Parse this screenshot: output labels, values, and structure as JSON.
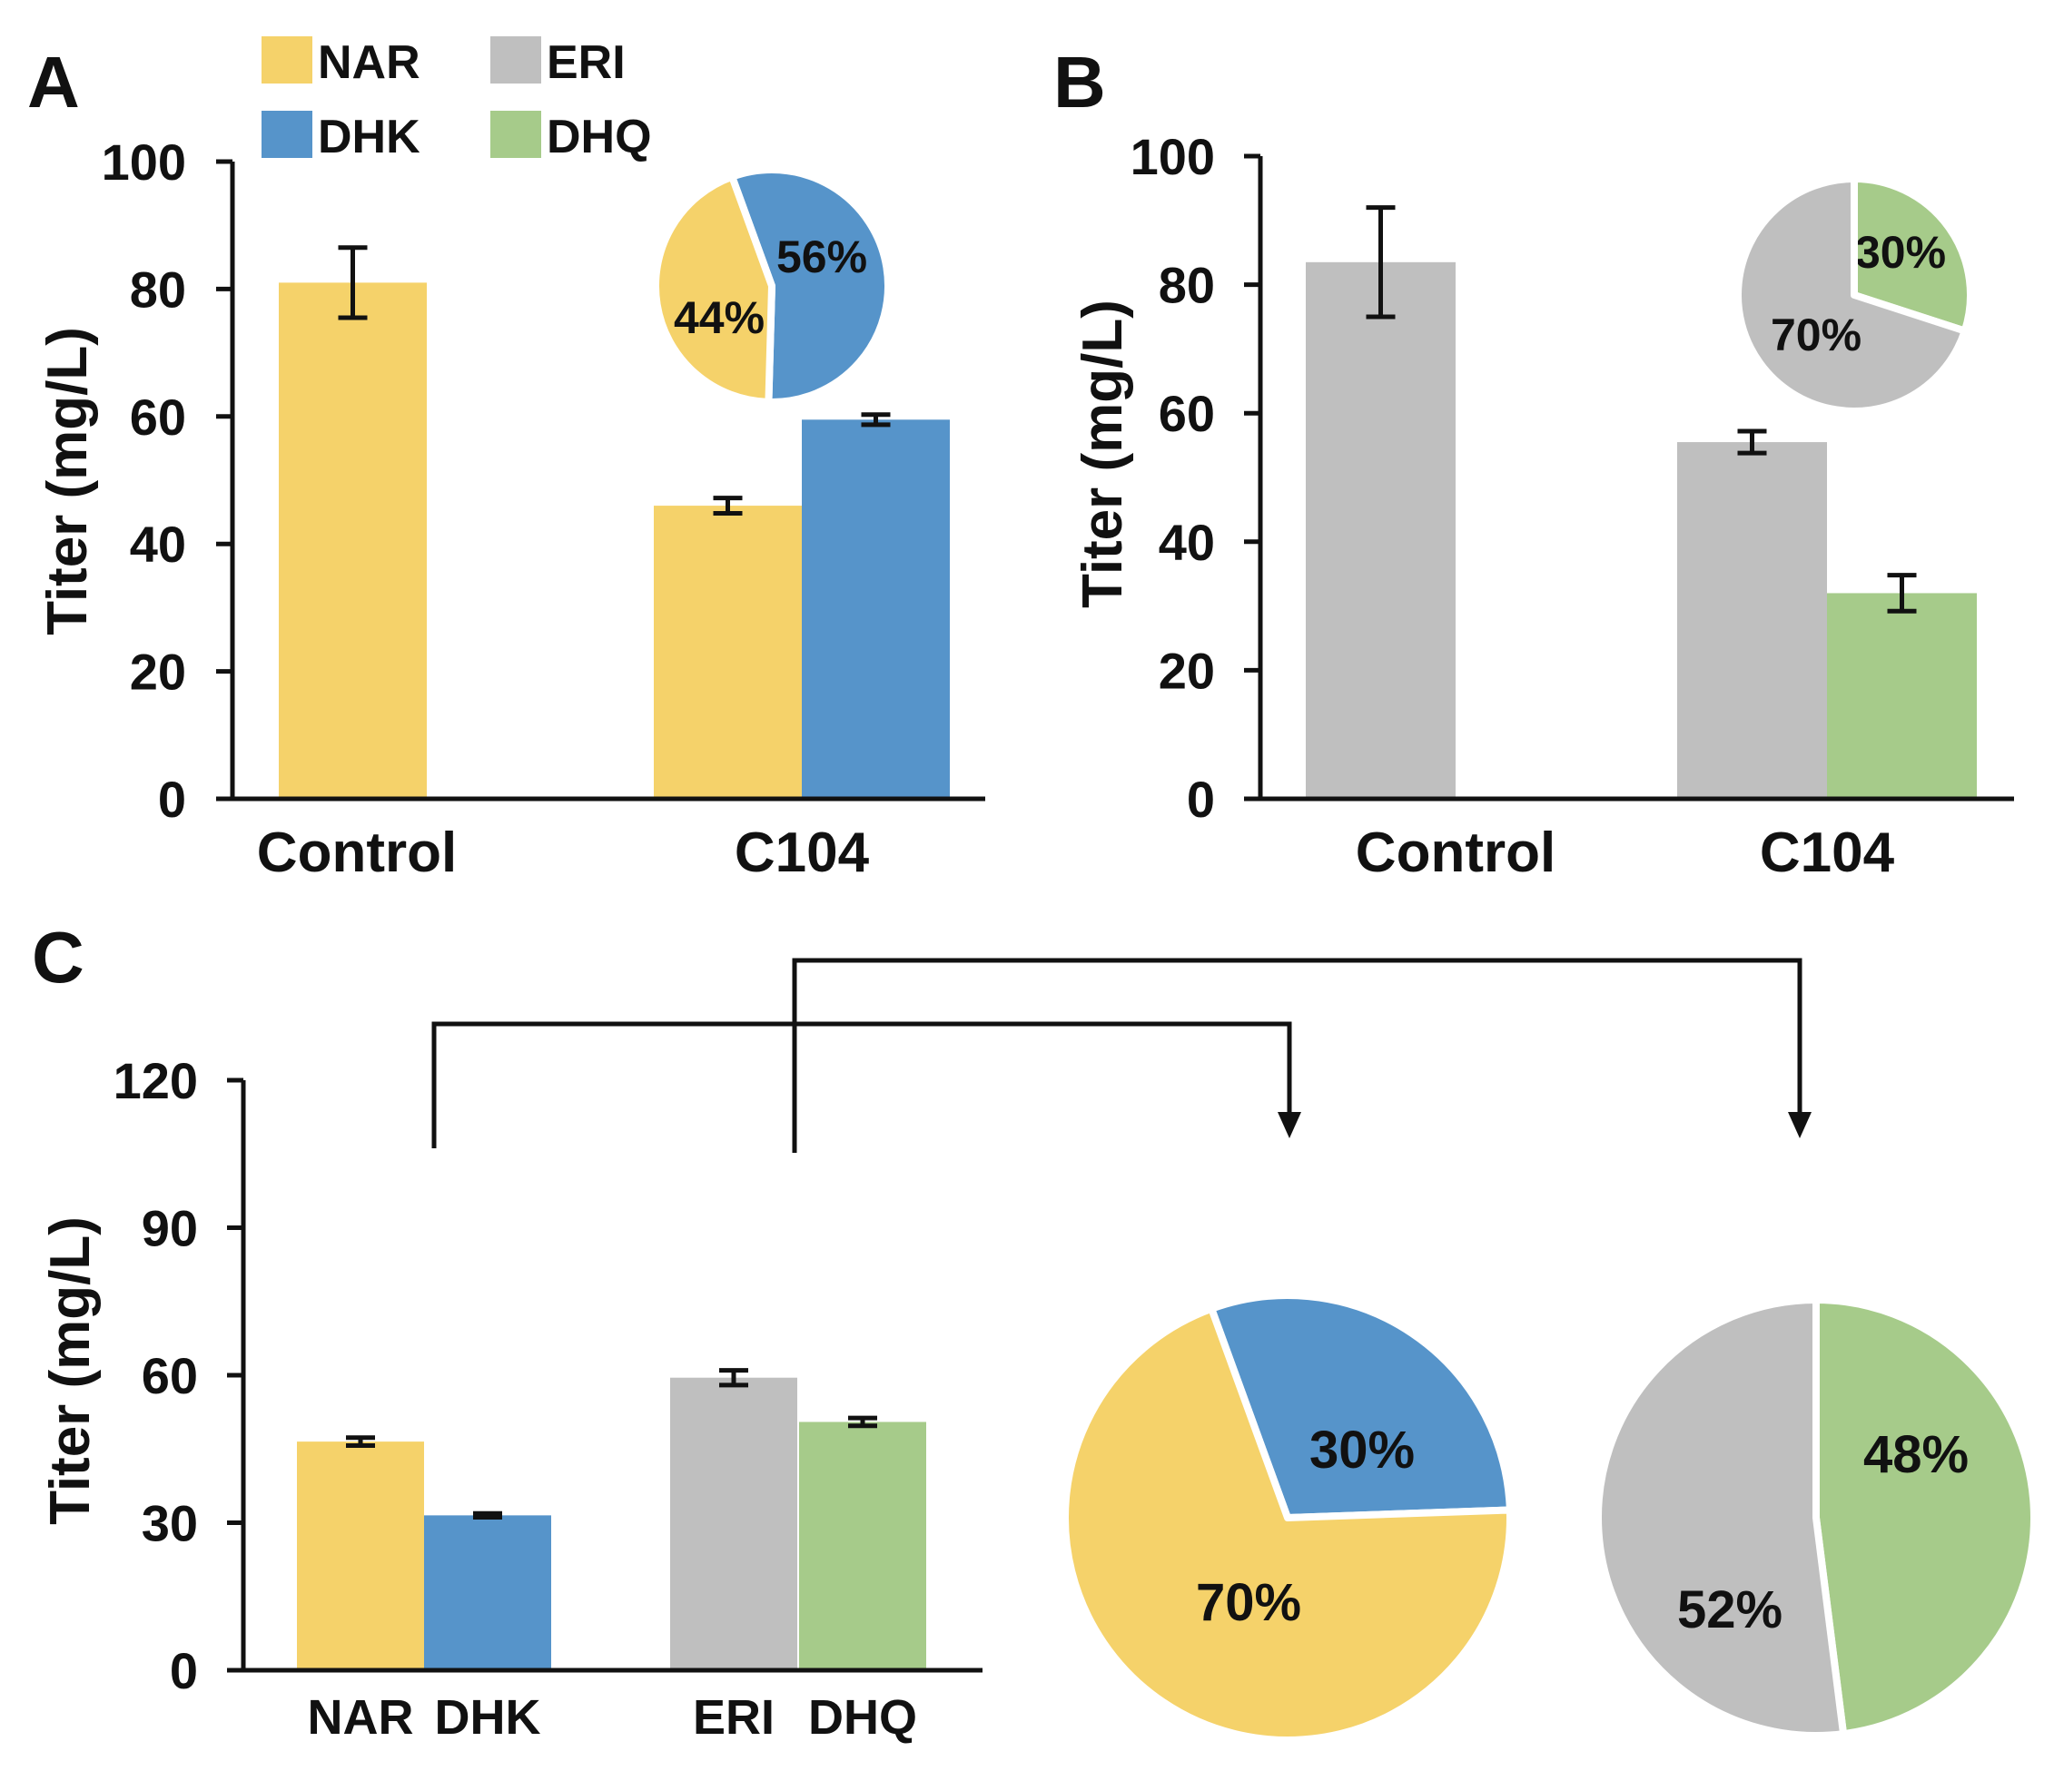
{
  "colors": {
    "NAR": "#F5D26A",
    "DHK": "#5694CA",
    "ERI": "#BFBFBF",
    "DHQ": "#A6CB8A",
    "axis": "#111111"
  },
  "legend": [
    {
      "key": "NAR",
      "label": "NAR"
    },
    {
      "key": "ERI",
      "label": "ERI"
    },
    {
      "key": "DHK",
      "label": "DHK"
    },
    {
      "key": "DHQ",
      "label": "DHQ"
    }
  ],
  "chart_data": [
    {
      "id": "A",
      "type": "bar",
      "panel_label": "A",
      "ylabel": "Titer (mg/L)",
      "ylim": [
        0,
        100
      ],
      "yticks": [
        "0",
        "20",
        "40",
        "60",
        "80",
        "100"
      ],
      "categories": [
        "Control",
        "C104"
      ],
      "bars": [
        {
          "category": 0,
          "series": "NAR",
          "value": 81,
          "error": 5.5
        },
        {
          "category": 1,
          "series": "NAR",
          "value": 46,
          "error": 1.2
        },
        {
          "category": 1,
          "series": "DHK",
          "value": 59.5,
          "error": 0.8
        }
      ],
      "inset_pie": {
        "slices": [
          {
            "series": "DHK",
            "value": 56,
            "label": "56%"
          },
          {
            "series": "NAR",
            "value": 44,
            "label": "44%"
          }
        ]
      }
    },
    {
      "id": "B",
      "type": "bar",
      "panel_label": "B",
      "ylabel": "Titer (mg/L)",
      "ylim": [
        0,
        100
      ],
      "yticks": [
        "0",
        "20",
        "40",
        "60",
        "80",
        "100"
      ],
      "categories": [
        "Control",
        "C104"
      ],
      "bars": [
        {
          "category": 0,
          "series": "ERI",
          "value": 83.5,
          "error": 8.5
        },
        {
          "category": 1,
          "series": "ERI",
          "value": 55.5,
          "error": 1.7
        },
        {
          "category": 1,
          "series": "DHQ",
          "value": 32,
          "error": 2.8
        }
      ],
      "inset_pie": {
        "slices": [
          {
            "series": "DHQ",
            "value": 30,
            "label": "30%"
          },
          {
            "series": "ERI",
            "value": 70,
            "label": "70%"
          }
        ]
      }
    },
    {
      "id": "C",
      "type": "bar",
      "panel_label": "C",
      "ylabel": "Titer (mg/L)",
      "ylim": [
        0,
        120
      ],
      "yticks": [
        "0",
        "30",
        "60",
        "90",
        "120"
      ],
      "categories": [
        "NAR",
        "DHK",
        "ERI",
        "DHQ"
      ],
      "bars": [
        {
          "category": 0,
          "series": "NAR",
          "value": 46.5,
          "error": 0.8
        },
        {
          "category": 1,
          "series": "DHK",
          "value": 31.5,
          "error": 0.4
        },
        {
          "category": 2,
          "series": "ERI",
          "value": 59.5,
          "error": 1.5
        },
        {
          "category": 3,
          "series": "DHQ",
          "value": 50.5,
          "error": 0.8
        }
      ]
    },
    {
      "id": "C-pie-1",
      "type": "pie",
      "slices": [
        {
          "series": "DHK",
          "value": 30,
          "label": "30%"
        },
        {
          "series": "NAR",
          "value": 70,
          "label": "70%"
        }
      ]
    },
    {
      "id": "C-pie-2",
      "type": "pie",
      "slices": [
        {
          "series": "DHQ",
          "value": 48,
          "label": "48%"
        },
        {
          "series": "ERI",
          "value": 52,
          "label": "52%"
        }
      ]
    }
  ]
}
